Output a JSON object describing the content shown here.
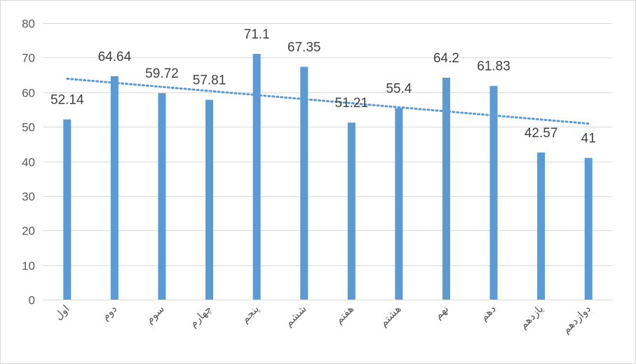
{
  "chart_data": {
    "type": "bar",
    "categories": [
      "اول",
      "دوم",
      "سوم",
      "چهارم",
      "پنجم",
      "ششم",
      "هفتم",
      "هشتم",
      "نهم",
      "دهم",
      "یازدهم",
      "دوازدهم"
    ],
    "values": [
      52.14,
      64.64,
      59.72,
      57.81,
      71.1,
      67.35,
      51.21,
      55.4,
      64.2,
      61.83,
      42.57,
      41
    ],
    "data_labels": [
      "52.14",
      "64.64",
      "59.72",
      "57.81",
      "71.1",
      "67.35",
      "51.21",
      "55.4",
      "64.2",
      "61.83",
      "42.57",
      "41"
    ],
    "title": "",
    "xlabel": "",
    "ylabel": "",
    "ylim": [
      0,
      80
    ],
    "yticks": [
      0,
      10,
      20,
      30,
      40,
      50,
      60,
      70,
      80
    ],
    "ytick_labels": [
      "0",
      "10",
      "20",
      "30",
      "40",
      "50",
      "60",
      "70",
      "80"
    ],
    "grid": true,
    "legend": "none",
    "trendline": {
      "type": "linear",
      "style": "dotted"
    },
    "colors": {
      "bar": "#5b9bd5",
      "trendline": "#5b9bd5",
      "grid": "#d9d9d9",
      "border": "#d9d9d9",
      "text": "#595959"
    }
  }
}
